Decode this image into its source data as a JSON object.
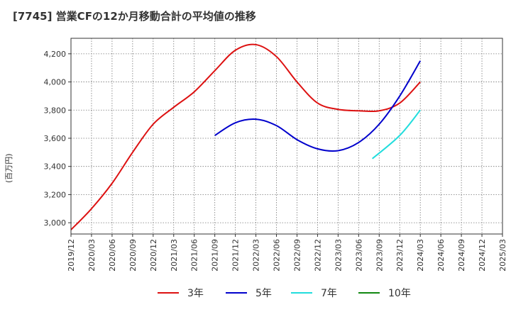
{
  "chart_data": {
    "type": "line",
    "title": "[7745]  営業CFの12か月移動合計の平均値の推移",
    "ylabel": "(百万円)",
    "xlabel": "",
    "ylim": [
      2920,
      4310
    ],
    "yticks": [
      3000,
      3200,
      3400,
      3600,
      3800,
      4000,
      4200
    ],
    "ytick_labels": [
      "3,000",
      "3,200",
      "3,400",
      "3,600",
      "3,800",
      "4,000",
      "4,200"
    ],
    "xticks": [
      "2019/12",
      "2020/03",
      "2020/06",
      "2020/09",
      "2020/12",
      "2021/03",
      "2021/06",
      "2021/09",
      "2021/12",
      "2022/03",
      "2022/06",
      "2022/09",
      "2022/12",
      "2023/03",
      "2023/06",
      "2023/09",
      "2023/12",
      "2024/03",
      "2024/06",
      "2024/09",
      "2024/12",
      "2025/03"
    ],
    "grid": true,
    "legend_position": "bottom",
    "series": [
      {
        "name": "3年",
        "color": "#dd1111",
        "points": [
          [
            "2019/12",
            2950
          ],
          [
            "2020/03",
            3100
          ],
          [
            "2020/06",
            3280
          ],
          [
            "2020/09",
            3500
          ],
          [
            "2020/12",
            3700
          ],
          [
            "2021/03",
            3820
          ],
          [
            "2021/06",
            3930
          ],
          [
            "2021/09",
            4080
          ],
          [
            "2021/12",
            4225
          ],
          [
            "2022/03",
            4265
          ],
          [
            "2022/06",
            4180
          ],
          [
            "2022/09",
            4000
          ],
          [
            "2022/12",
            3850
          ],
          [
            "2023/03",
            3805
          ],
          [
            "2023/06",
            3795
          ],
          [
            "2023/09",
            3795
          ],
          [
            "2023/12",
            3850
          ],
          [
            "2024/03",
            4000
          ]
        ]
      },
      {
        "name": "5年",
        "color": "#0000cc",
        "points": [
          [
            "2021/09",
            3620
          ],
          [
            "2021/12",
            3710
          ],
          [
            "2022/03",
            3735
          ],
          [
            "2022/06",
            3690
          ],
          [
            "2022/09",
            3590
          ],
          [
            "2022/12",
            3525
          ],
          [
            "2023/03",
            3512
          ],
          [
            "2023/06",
            3570
          ],
          [
            "2023/09",
            3700
          ],
          [
            "2023/12",
            3900
          ],
          [
            "2024/03",
            4150
          ]
        ]
      },
      {
        "name": "7年",
        "color": "#22dddd",
        "points": [
          [
            "2023/08",
            3455
          ],
          [
            "2023/12",
            3620
          ],
          [
            "2024/03",
            3800
          ]
        ]
      },
      {
        "name": "10年",
        "color": "#118811",
        "points": []
      }
    ]
  }
}
